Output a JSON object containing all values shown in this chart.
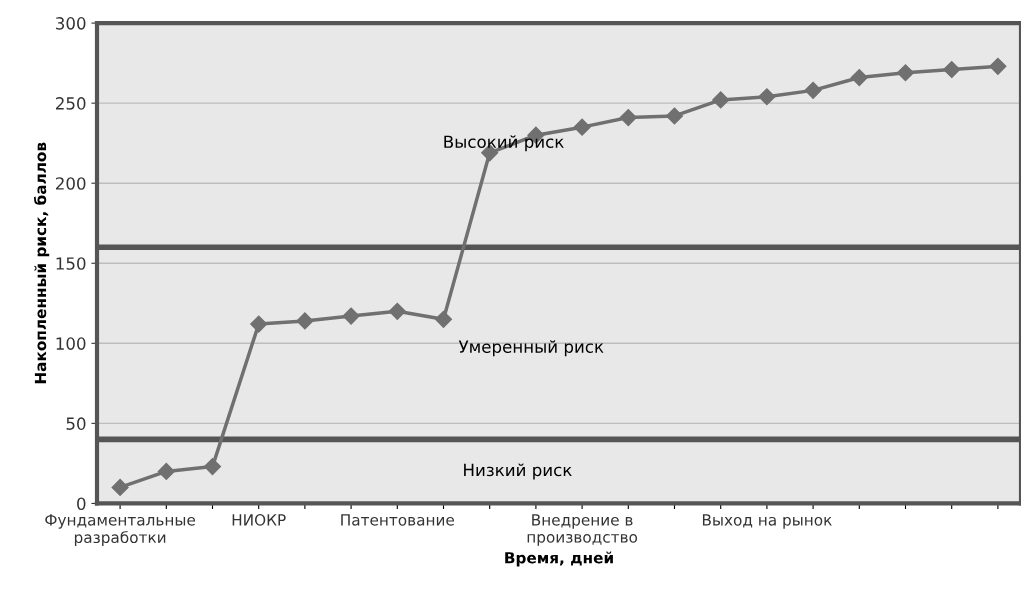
{
  "chart_data": {
    "type": "line",
    "xlabel": "Время, дней",
    "ylabel": "Накопленный риск, баллов",
    "categories": [
      "Фундаментальные\nразработки",
      null,
      null,
      "НИОКР",
      null,
      null,
      "Патентование",
      null,
      null,
      null,
      "Внедрение в\nпроизводство",
      null,
      null,
      null,
      "Выход на рынок",
      null,
      null,
      null,
      null,
      null
    ],
    "series": [
      {
        "color": "#707070",
        "values": [
          10,
          20,
          23,
          112,
          114,
          117,
          120,
          115,
          219,
          230,
          235,
          241,
          242,
          252,
          254,
          258,
          266,
          269,
          271,
          273
        ]
      }
    ],
    "ylim": [
      0,
      300
    ],
    "yticks": [
      0,
      50,
      100,
      150,
      200,
      250,
      300
    ],
    "grid": "y",
    "legend": false,
    "marker": "diamond",
    "line_style": "solid",
    "ref_lines": [
      {
        "axis": "y",
        "value": 40,
        "color": "#555555"
      },
      {
        "axis": "y",
        "value": 160,
        "color": "#555555"
      }
    ],
    "annotations": [
      "Высокий риск",
      "Умеренный риск",
      "Низкий риск"
    ]
  }
}
